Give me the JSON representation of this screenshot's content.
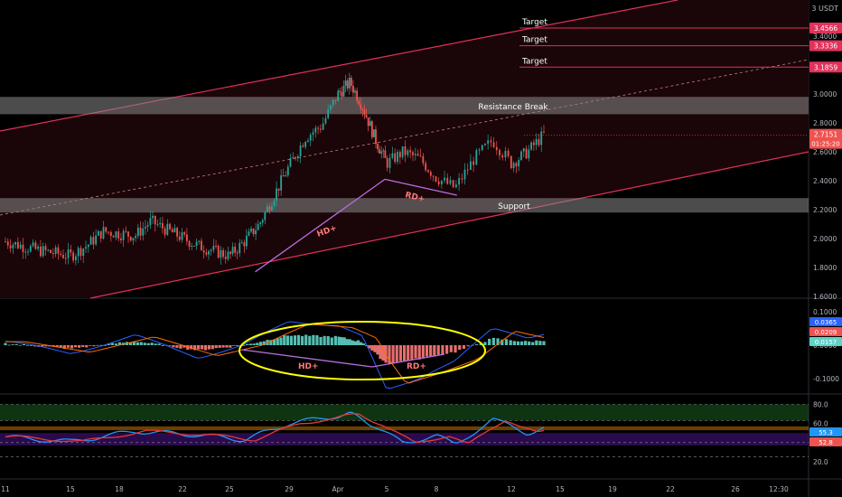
{
  "colors": {
    "background": "#000000",
    "channel": "#e0325a",
    "zone": "#8a8a8a",
    "candle_up": "#26a69a",
    "candle_down": "#ef5350",
    "macd_line": "#2962ff",
    "signal_line": "#ff6d00",
    "hist_pos": "#5fd3c6",
    "hist_neg": "#ff7a7a",
    "rsi_fast": "#2196f3",
    "rsi_slow": "#e53935",
    "divergence": "#b96ee0",
    "highlight": "#ffff00"
  },
  "header": {
    "unit_label": "3 USDT"
  },
  "price_panel": {
    "ylim": [
      1.55,
      3.9
    ],
    "y_ticks": [
      "3.4000",
      "3.0000",
      "2.8000",
      "2.6000",
      "2.4000",
      "2.2000",
      "2.0000",
      "1.8000",
      "1.6000"
    ],
    "zones": [
      {
        "label": "Resistance Break",
        "low": 2.86,
        "high": 2.98
      },
      {
        "label": "Support",
        "low": 2.18,
        "high": 2.28
      }
    ],
    "targets": [
      {
        "label": "Target",
        "value": 3.4566,
        "badge": "3.4566"
      },
      {
        "label": "Target",
        "value": 3.3336,
        "badge": "3.3336"
      },
      {
        "label": "Target",
        "value": 3.1859,
        "badge": "3.1859"
      }
    ],
    "current_price": {
      "value": 2.7151,
      "badge": "2.7151",
      "countdown": "01:25:20"
    },
    "annotations": [
      {
        "label": "HD+"
      },
      {
        "label": "RD+"
      }
    ]
  },
  "macd_panel": {
    "y_ticks": [
      "0.1000",
      "0.0000",
      "-0.1000"
    ],
    "badges": [
      "0.0365",
      "0.0209",
      "0.0157"
    ],
    "annotations": [
      {
        "label": "HD+"
      },
      {
        "label": "RD+"
      }
    ]
  },
  "rsi_panel": {
    "y_ticks": [
      "80.0",
      "60.0",
      "40.0",
      "20.0"
    ],
    "badges": [
      "55.3",
      "52.8"
    ]
  },
  "x_axis": {
    "labels": [
      "11",
      "15",
      "18",
      "22",
      "25",
      "29",
      "Apr",
      "5",
      "8",
      "12",
      "15",
      "19",
      "22",
      "26",
      "12:30"
    ]
  },
  "chart_data": {
    "type": "candlestick",
    "series": [
      {
        "name": "price_close",
        "x": [
          "Mar 10",
          "Mar 12",
          "Mar 14",
          "Mar 15",
          "Mar 16",
          "Mar 18",
          "Mar 19",
          "Mar 20",
          "Mar 22",
          "Mar 24",
          "Mar 25",
          "Mar 26",
          "Mar 27",
          "Mar 28",
          "Mar 29",
          "Mar 30",
          "Mar 31",
          "Apr 1",
          "Apr 2",
          "Apr 3",
          "Apr 4",
          "Apr 5",
          "Apr 6",
          "Apr 7",
          "Apr 8",
          "Apr 9",
          "Apr 10",
          "Apr 11",
          "Apr 12",
          "Apr 13"
        ],
        "values": [
          1.98,
          1.92,
          1.88,
          1.95,
          2.05,
          2.02,
          2.12,
          2.06,
          1.95,
          1.88,
          1.98,
          2.1,
          2.3,
          2.5,
          2.7,
          2.78,
          3.0,
          3.08,
          2.92,
          2.7,
          2.52,
          2.6,
          2.55,
          2.42,
          2.35,
          2.55,
          2.68,
          2.52,
          2.6,
          2.72
        ]
      },
      {
        "name": "macd_histogram",
        "x": [
          "Mar 10",
          "Mar 14",
          "Mar 18",
          "Mar 22",
          "Mar 25",
          "Mar 28",
          "Mar 31",
          "Apr 2",
          "Apr 4",
          "Apr 6",
          "Apr 8",
          "Apr 10",
          "Apr 12",
          "Apr 13"
        ],
        "values": [
          0.005,
          -0.01,
          0.012,
          -0.015,
          0.0,
          0.03,
          0.025,
          0.01,
          -0.055,
          -0.04,
          -0.02,
          0.02,
          0.01,
          0.015
        ]
      },
      {
        "name": "rsi",
        "x": [
          "Mar 10",
          "Mar 14",
          "Mar 18",
          "Mar 22",
          "Mar 25",
          "Mar 28",
          "Mar 31",
          "Apr 1",
          "Apr 3",
          "Apr 5",
          "Apr 7",
          "Apr 8",
          "Apr 10",
          "Apr 12",
          "Apr 13"
        ],
        "values": [
          46,
          41,
          52,
          48,
          43,
          60,
          68,
          70,
          58,
          40,
          47,
          38,
          64,
          50,
          55
        ]
      }
    ],
    "x_range": [
      "Mar 10",
      "Apr 27"
    ]
  }
}
